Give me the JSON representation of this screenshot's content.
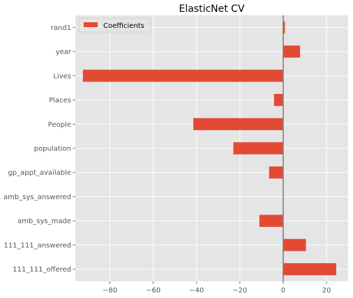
{
  "chart_data": {
    "type": "bar",
    "orientation": "horizontal",
    "title": "ElasticNet CV",
    "xlabel": "",
    "ylabel": "",
    "categories": [
      "111_111_offered",
      "111_111_answered",
      "amb_sys_made",
      "amb_sys_answered",
      "gp_appt_available",
      "population",
      "People",
      "Places",
      "Lives",
      "year",
      "rand1"
    ],
    "series": [
      {
        "name": "Coefficients",
        "values": [
          24.5,
          10.5,
          -11,
          0,
          -6.5,
          -23,
          -41.5,
          -4.2,
          -92.5,
          7.8,
          0.8
        ],
        "color": "#E24A33"
      }
    ],
    "xlim": [
      -96,
      30
    ],
    "xticks": [
      -80,
      -60,
      -40,
      -20,
      0,
      20
    ],
    "xtick_labels": [
      "−80",
      "−60",
      "−40",
      "−20",
      "0",
      "20"
    ],
    "grid": true,
    "legend_position": "upper-left",
    "zero_line": true,
    "colors": {
      "plot_background": "#E5E5E5",
      "grid": "#FFFFFF",
      "bar": "#E24A33",
      "zero_line": "#808080",
      "tick_text": "#555555"
    }
  }
}
